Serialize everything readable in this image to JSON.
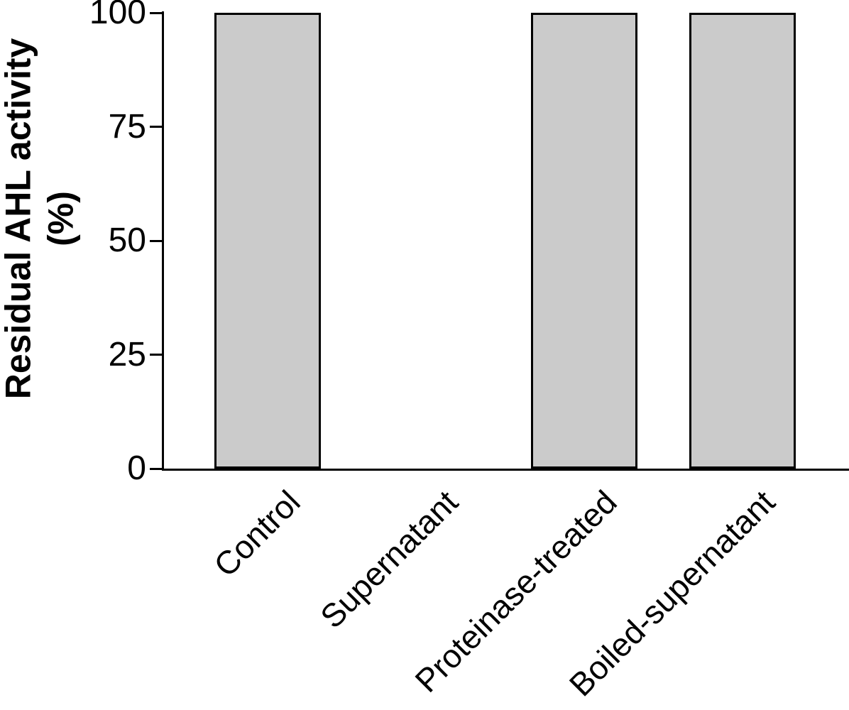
{
  "chart_data": {
    "type": "bar",
    "title": "",
    "categories": [
      "Control",
      "Supernatant",
      "Proteinase-treated",
      "Boiled-supernatant"
    ],
    "values": [
      100,
      0,
      100,
      100
    ],
    "ylabel": "Residual AHL activity (%)",
    "ylabel_lines": [
      "Residual AHL activity",
      "(%)"
    ],
    "xlabel": "",
    "ylim": [
      0,
      100
    ],
    "yticks": [
      0,
      25,
      50,
      75,
      100
    ],
    "grid": false,
    "legend": null,
    "colors": {
      "bar_fill": "#cbcbcb",
      "bar_border": "#000000",
      "axis": "#000000",
      "text": "#000000",
      "background": "#ffffff"
    }
  }
}
